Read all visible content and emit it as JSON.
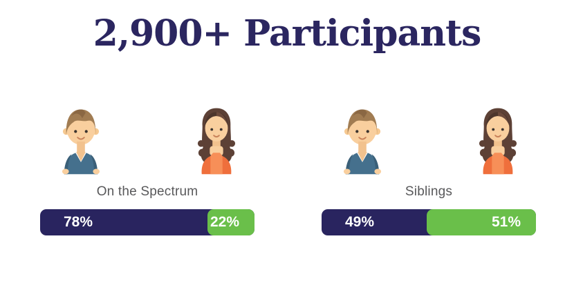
{
  "title": "2,900+ Participants",
  "colors": {
    "navy": "#29245f",
    "green": "#6abf4a",
    "title_navy": "#2b2660",
    "label_gray": "#58585a",
    "bg": "#ffffff"
  },
  "icons": {
    "male": "male-avatar-icon",
    "female": "female-avatar-icon"
  },
  "groups": [
    {
      "label": "On the Spectrum",
      "segments": [
        {
          "pct_label": "78%",
          "value": 78
        },
        {
          "pct_label": "22%",
          "value": 22
        }
      ]
    },
    {
      "label": "Siblings",
      "segments": [
        {
          "pct_label": "49%",
          "value": 49
        },
        {
          "pct_label": "51%",
          "value": 51
        }
      ]
    }
  ],
  "chart_data": [
    {
      "type": "bar",
      "title": "On the Spectrum",
      "categories": [
        "Male",
        "Female"
      ],
      "values": [
        78,
        22
      ],
      "unit": "%",
      "series_colors": [
        "#29245f",
        "#6abf4a"
      ],
      "layout": "single stacked horizontal bar, labels inside segments, no axes, no grid"
    },
    {
      "type": "bar",
      "title": "Siblings",
      "categories": [
        "Male",
        "Female"
      ],
      "values": [
        49,
        51
      ],
      "unit": "%",
      "series_colors": [
        "#29245f",
        "#6abf4a"
      ],
      "layout": "single stacked horizontal bar, labels inside segments, no axes, no grid"
    }
  ]
}
